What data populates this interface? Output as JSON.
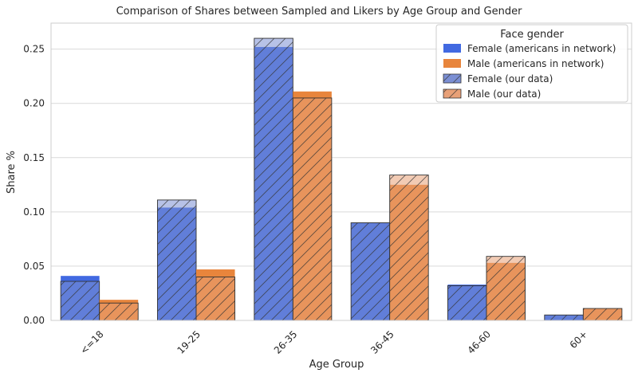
{
  "chart_data": {
    "type": "bar",
    "title": "Comparison of Shares between Sampled and Likers by Age Group and Gender",
    "xlabel": "Age Group",
    "ylabel": "Share %",
    "categories": [
      "<=18",
      "19-25",
      "26-35",
      "36-45",
      "46-60",
      "60+"
    ],
    "ylim": [
      0,
      0.274
    ],
    "yticks": [
      0.0,
      0.05,
      0.1,
      0.15,
      0.2,
      0.25
    ],
    "ytick_labels": [
      "0.00",
      "0.05",
      "0.10",
      "0.15",
      "0.20",
      "0.25"
    ],
    "grid": true,
    "legend": {
      "title": "Face gender",
      "position": "top-right",
      "entries": [
        "Female (americans in network)",
        "Male (americans in network)",
        "Female (our data)",
        "Male (our data)"
      ]
    },
    "series": [
      {
        "name": "Female (americans in network)",
        "gender": "female",
        "source": "network",
        "values": [
          0.041,
          0.104,
          0.252,
          0.09,
          0.033,
          0.005
        ]
      },
      {
        "name": "Male (americans in network)",
        "gender": "male",
        "source": "network",
        "values": [
          0.019,
          0.047,
          0.211,
          0.125,
          0.053,
          0.011
        ]
      },
      {
        "name": "Female (our data)",
        "gender": "female",
        "source": "ours",
        "values": [
          0.036,
          0.111,
          0.26,
          0.09,
          0.032,
          0.005
        ]
      },
      {
        "name": "Male (our data)",
        "gender": "male",
        "source": "ours",
        "values": [
          0.016,
          0.04,
          0.205,
          0.134,
          0.059,
          0.011
        ]
      }
    ],
    "colors": {
      "female": "#4169e1",
      "male": "#e8853c",
      "female_hatched": "#7b8fd4",
      "male_hatched": "#e8a077"
    }
  }
}
